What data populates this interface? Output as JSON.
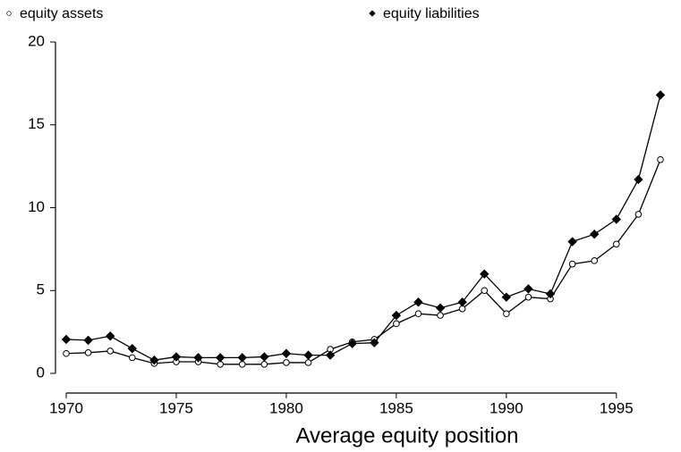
{
  "chart_data": {
    "type": "line",
    "xlabel": "Average equity position",
    "x": [
      1970,
      1971,
      1972,
      1973,
      1974,
      1975,
      1976,
      1977,
      1978,
      1979,
      1980,
      1981,
      1982,
      1983,
      1984,
      1985,
      1986,
      1987,
      1988,
      1989,
      1990,
      1991,
      1992,
      1993,
      1994,
      1995,
      1996,
      1997
    ],
    "series": [
      {
        "name": "equity assets",
        "color": "#000000",
        "marker": "circle",
        "values": [
          1.2,
          1.25,
          1.35,
          0.95,
          0.6,
          0.7,
          0.7,
          0.55,
          0.55,
          0.55,
          0.65,
          0.65,
          1.45,
          1.9,
          2.05,
          3.0,
          3.6,
          3.5,
          3.9,
          5.0,
          3.6,
          4.6,
          4.5,
          6.6,
          6.8,
          7.8,
          9.6,
          12.9
        ]
      },
      {
        "name": "equity liabilities",
        "color": "#000000",
        "marker": "diamond",
        "values": [
          2.05,
          2.0,
          2.25,
          1.5,
          0.8,
          1.0,
          0.95,
          0.95,
          0.95,
          1.0,
          1.2,
          1.1,
          1.1,
          1.8,
          1.85,
          3.5,
          4.3,
          3.95,
          4.3,
          6.0,
          4.6,
          5.1,
          4.8,
          7.95,
          8.4,
          9.3,
          11.7,
          16.8
        ]
      }
    ],
    "xlim": [
      1970,
      1997
    ],
    "xticks": [
      1970,
      1975,
      1980,
      1985,
      1990,
      1995
    ],
    "ylim": [
      0,
      20
    ],
    "yticks": [
      0,
      5,
      10,
      15,
      20
    ]
  }
}
